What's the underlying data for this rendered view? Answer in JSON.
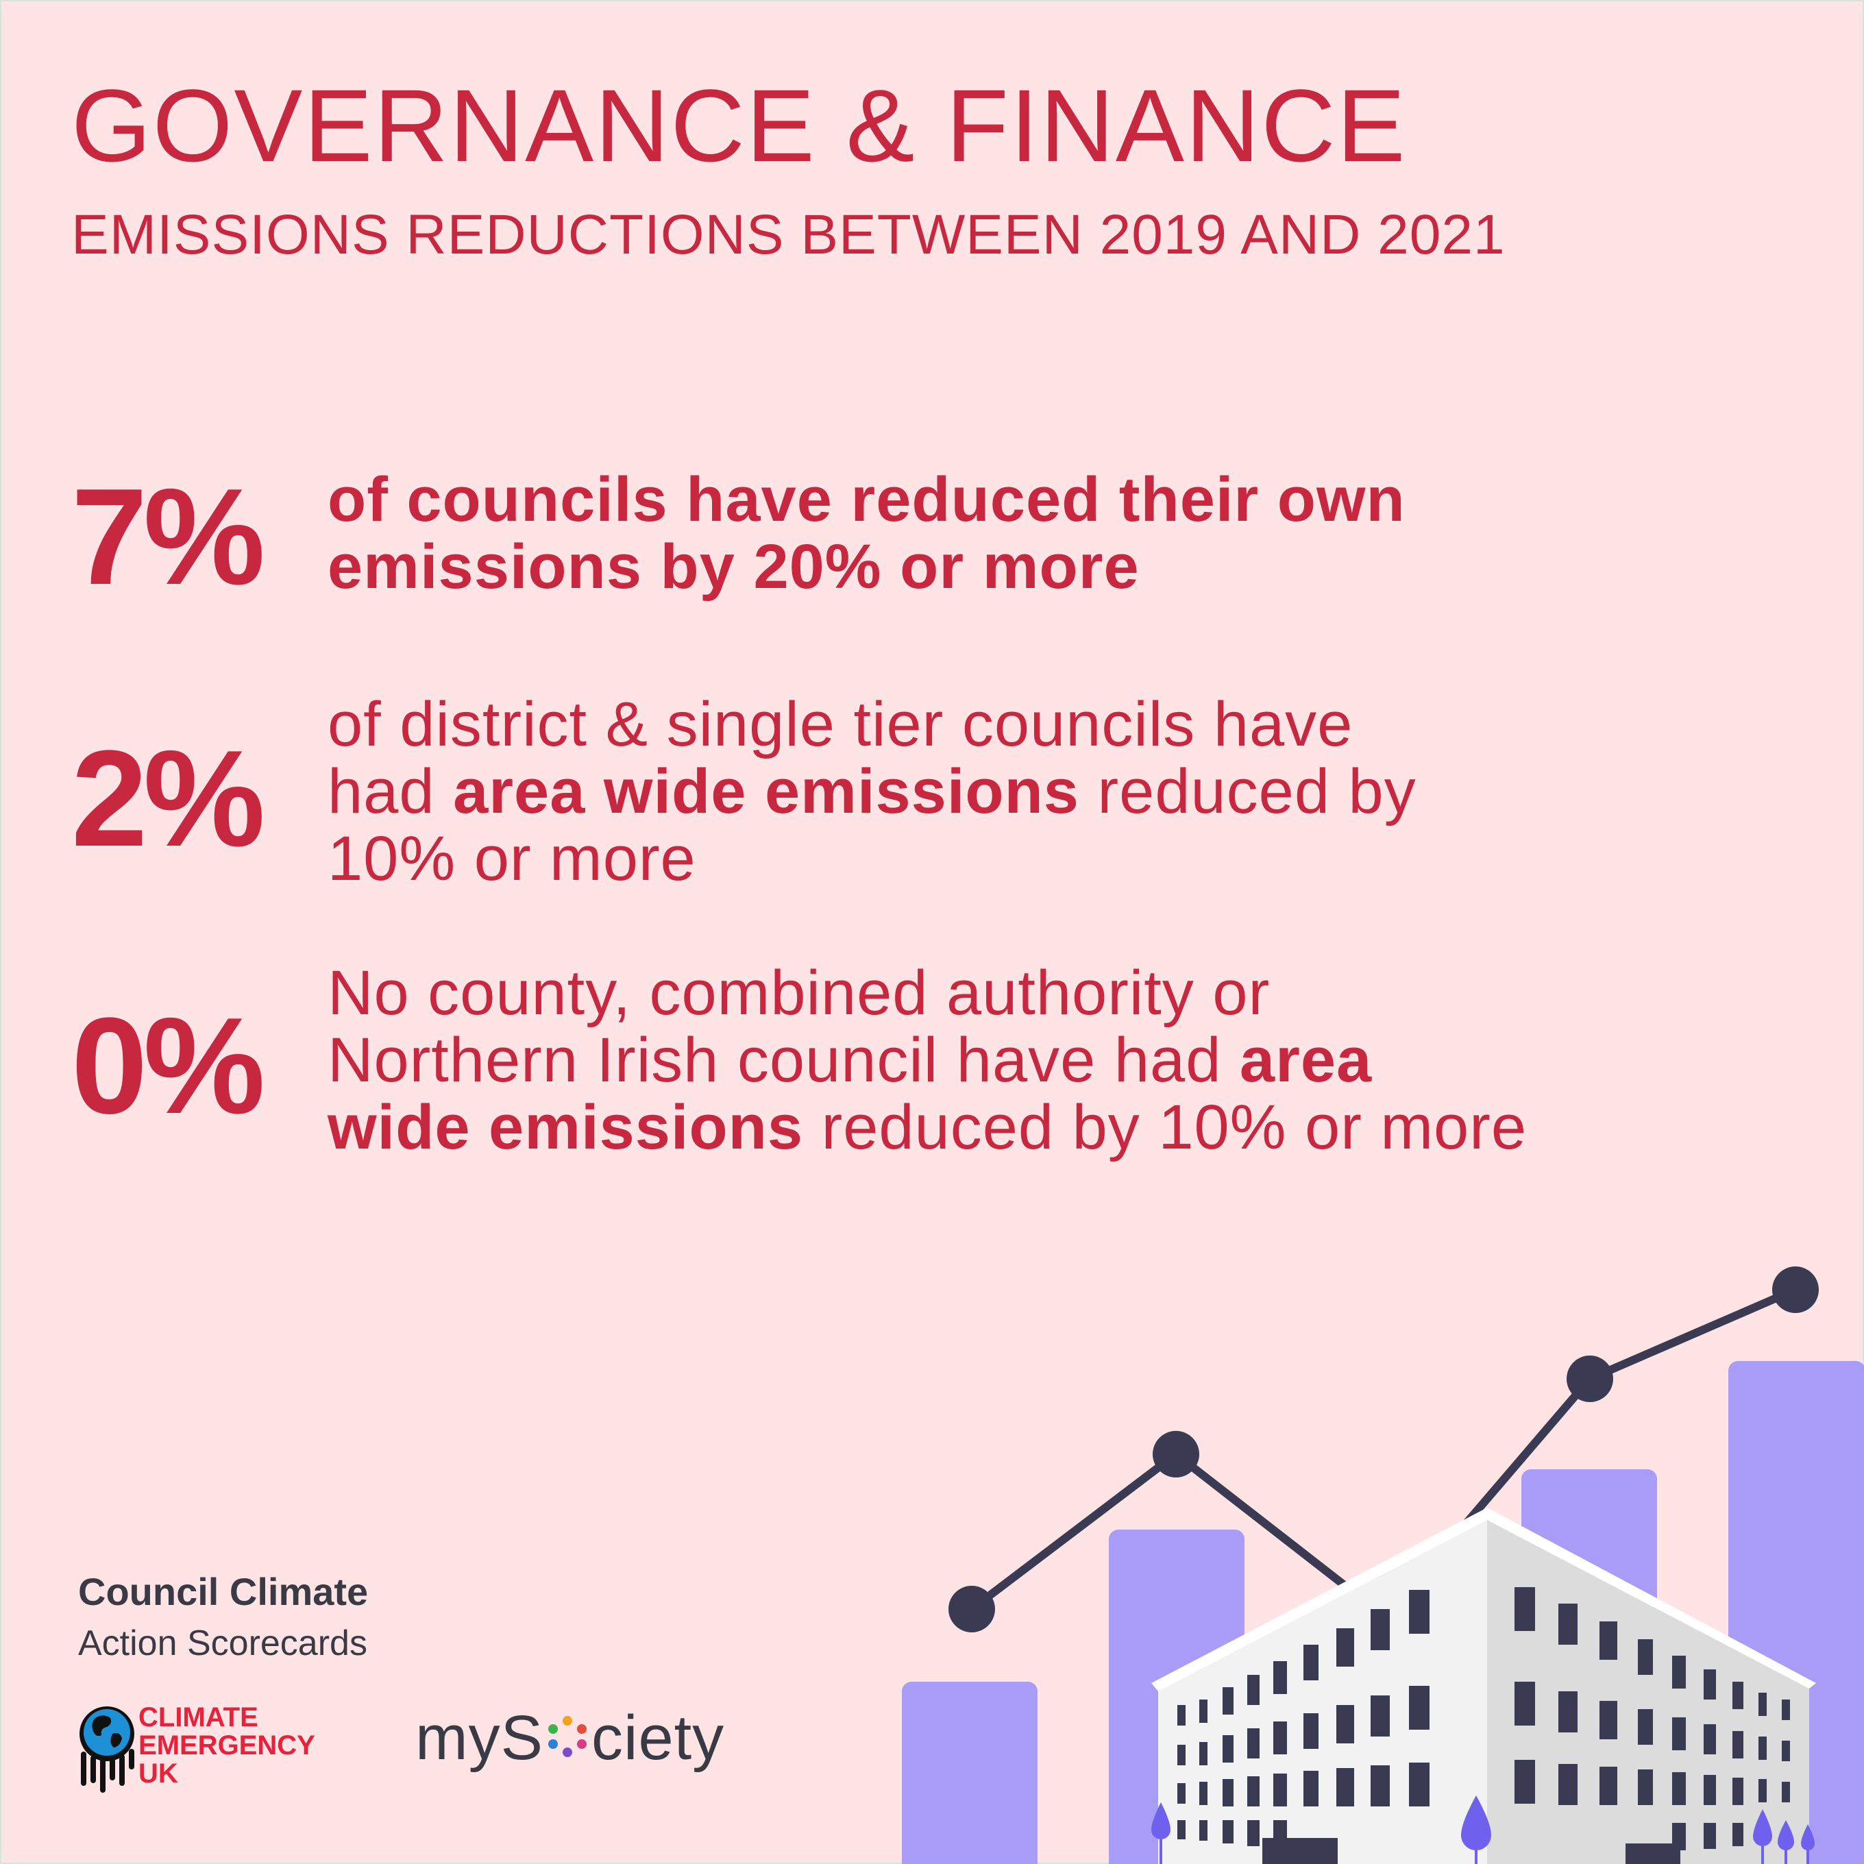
{
  "header": {
    "title": "GOVERNANCE & FINANCE",
    "subtitle": "EMISSIONS REDUCTIONS BETWEEN 2019 AND 2021"
  },
  "stats": [
    {
      "value": "7%",
      "line1": "of councils have reduced their own",
      "line2": "emissions by 20% or more"
    },
    {
      "value": "2%",
      "line1": "of district & single tier councils have",
      "line2_plain": "had ",
      "line2_bold": "area wide emissions",
      "line2_rest": " reduced by",
      "line3": "10% or more"
    },
    {
      "value": "0%",
      "line1": "No county, combined authority or",
      "line2_plain": "Northern Irish council have had ",
      "line2_bold": "area",
      "line3_bold": "wide emissions",
      "line3_rest": " reduced by 10% or more"
    }
  ],
  "footer": {
    "brand_line1": "Council Climate",
    "brand_line2": "Action Scorecards",
    "ceuk_line1": "CLIMATE",
    "ceuk_line2": "EMERGENCY",
    "ceuk_line3": "UK",
    "mysociety_prefix": "myS",
    "mysociety_suffix": "ciety"
  },
  "colors": {
    "background": "#ffe4e6",
    "accent": "#c8283f",
    "bars": "#a99cf6",
    "line": "#3a3a52",
    "building": "#f2f2f2"
  },
  "icons": [
    "globe-icon",
    "rising-chart-illustration",
    "office-building-illustration"
  ]
}
